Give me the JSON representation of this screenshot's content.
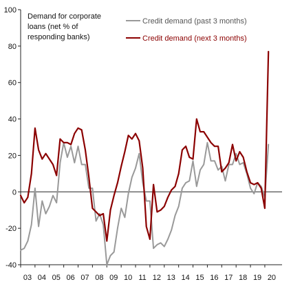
{
  "chart_data": {
    "type": "line",
    "title": "",
    "ylabel_lines": [
      "Demand for corporate",
      "loans (net % of",
      "responding banks)"
    ],
    "xlabel": "",
    "ylim": [
      -40,
      100
    ],
    "yticks": [
      -40,
      -20,
      0,
      20,
      40,
      60,
      80,
      100
    ],
    "xlim": [
      2003.0,
      2021.2
    ],
    "xticks": [
      {
        "x": 2003.0,
        "label": "03"
      },
      {
        "x": 2004.0,
        "label": "04"
      },
      {
        "x": 2005.0,
        "label": "05"
      },
      {
        "x": 2006.0,
        "label": "06"
      },
      {
        "x": 2007.0,
        "label": "07"
      },
      {
        "x": 2008.0,
        "label": "08"
      },
      {
        "x": 2009.0,
        "label": "09"
      },
      {
        "x": 2010.0,
        "label": "10"
      },
      {
        "x": 2011.0,
        "label": "11"
      },
      {
        "x": 2012.0,
        "label": "12"
      },
      {
        "x": 2013.0,
        "label": "13"
      },
      {
        "x": 2014.0,
        "label": "14"
      },
      {
        "x": 2015.0,
        "label": "15"
      },
      {
        "x": 2016.0,
        "label": "16"
      },
      {
        "x": 2017.0,
        "label": "17"
      },
      {
        "x": 2018.0,
        "label": "18"
      },
      {
        "x": 2019.0,
        "label": "19"
      },
      {
        "x": 2020.0,
        "label": "20"
      }
    ],
    "grid": false,
    "legend": "top-right",
    "series": [
      {
        "name": "Credit demand (past 3 months)",
        "color": "#999999",
        "x": [
          2003.0,
          2003.25,
          2003.5,
          2003.75,
          2004.0,
          2004.25,
          2004.5,
          2004.75,
          2005.0,
          2005.25,
          2005.5,
          2005.75,
          2006.0,
          2006.25,
          2006.5,
          2006.75,
          2007.0,
          2007.25,
          2007.5,
          2007.75,
          2008.0,
          2008.25,
          2008.5,
          2008.75,
          2009.0,
          2009.25,
          2009.5,
          2009.75,
          2010.0,
          2010.25,
          2010.5,
          2010.75,
          2011.0,
          2011.25,
          2011.5,
          2011.75,
          2012.0,
          2012.25,
          2012.5,
          2012.75,
          2013.0,
          2013.25,
          2013.5,
          2013.75,
          2014.0,
          2014.25,
          2014.5,
          2014.75,
          2015.0,
          2015.25,
          2015.5,
          2015.75,
          2016.0,
          2016.25,
          2016.5,
          2016.75,
          2017.0,
          2017.25,
          2017.5,
          2017.75,
          2018.0,
          2018.25,
          2018.5,
          2018.75,
          2019.0,
          2019.25,
          2019.5,
          2019.75,
          2020.0,
          2020.25
        ],
        "values": [
          -32,
          -31,
          -27,
          -18,
          2,
          -19,
          -5,
          -12,
          -8,
          -2,
          -6,
          16,
          27,
          19,
          25,
          16,
          25,
          15,
          15,
          2,
          2,
          -16,
          -12,
          -18,
          -40,
          -35,
          -33,
          -20,
          -9,
          -14,
          -1,
          8,
          13,
          21,
          5,
          -5,
          -5,
          -31,
          -29,
          -28,
          -30,
          -26,
          -21,
          -13,
          -8,
          2,
          5,
          6,
          17,
          3,
          12,
          15,
          27,
          17,
          17,
          12,
          14,
          6,
          15,
          15,
          21,
          15,
          16,
          10,
          2,
          -1,
          5,
          3,
          -3,
          26
        ]
      },
      {
        "name": "Credit demand (next 3 months)",
        "color": "#8b0000",
        "x": [
          2003.0,
          2003.25,
          2003.5,
          2003.75,
          2004.0,
          2004.25,
          2004.5,
          2004.75,
          2005.0,
          2005.25,
          2005.5,
          2005.75,
          2006.0,
          2006.25,
          2006.5,
          2006.75,
          2007.0,
          2007.25,
          2007.5,
          2007.75,
          2008.0,
          2008.25,
          2008.5,
          2008.75,
          2009.0,
          2009.25,
          2009.5,
          2009.75,
          2010.0,
          2010.25,
          2010.5,
          2010.75,
          2011.0,
          2011.25,
          2011.5,
          2011.75,
          2012.0,
          2012.25,
          2012.5,
          2012.75,
          2013.0,
          2013.25,
          2013.5,
          2013.75,
          2014.0,
          2014.25,
          2014.5,
          2014.75,
          2015.0,
          2015.25,
          2015.5,
          2015.75,
          2016.0,
          2016.25,
          2016.5,
          2016.75,
          2017.0,
          2017.25,
          2017.5,
          2017.75,
          2018.0,
          2018.25,
          2018.5,
          2018.75,
          2019.0,
          2019.25,
          2019.5,
          2019.75,
          2020.0,
          2020.25
        ],
        "values": [
          -2,
          -6,
          -3,
          10,
          35,
          23,
          18,
          21,
          18,
          15,
          9,
          29,
          27,
          27,
          26,
          32,
          35,
          34,
          23,
          8,
          -9,
          -11,
          -13,
          -12,
          -27,
          -10,
          -2,
          5,
          14,
          22,
          31,
          29,
          32,
          28,
          13,
          -19,
          -26,
          4,
          -11,
          -10,
          -8,
          -3,
          1,
          3,
          10,
          23,
          25,
          19,
          18,
          40,
          33,
          33,
          30,
          27,
          25,
          25,
          11,
          13,
          16,
          26,
          17,
          22,
          19,
          11,
          5,
          4,
          5,
          2,
          -9,
          77
        ]
      }
    ]
  }
}
